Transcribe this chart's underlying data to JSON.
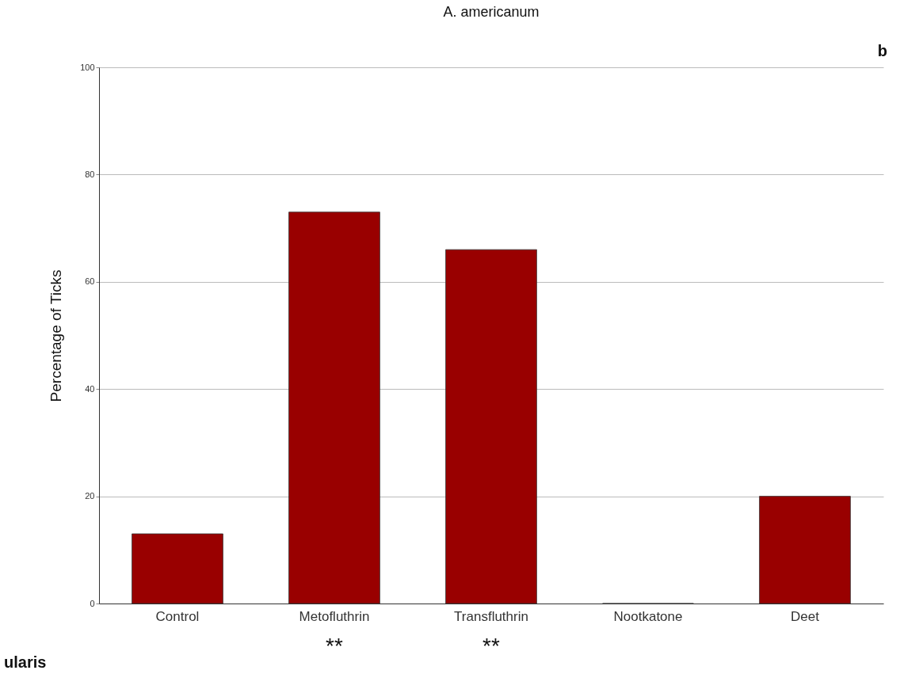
{
  "chart_data": {
    "type": "bar",
    "title": "A. americanum",
    "ylabel": "Percentage of Ticks",
    "categories": [
      "Control",
      "Metofluthrin",
      "Transfluthrin",
      "Nootkatone",
      "Deet"
    ],
    "values": [
      13,
      73,
      66,
      0,
      20
    ],
    "color": "#990000",
    "ylim": [
      0,
      100
    ],
    "yticks": [
      0,
      20,
      40,
      60,
      80,
      100
    ],
    "grid": "y",
    "annotations": [
      "b",
      "ularis",
      "**",
      "**"
    ]
  }
}
